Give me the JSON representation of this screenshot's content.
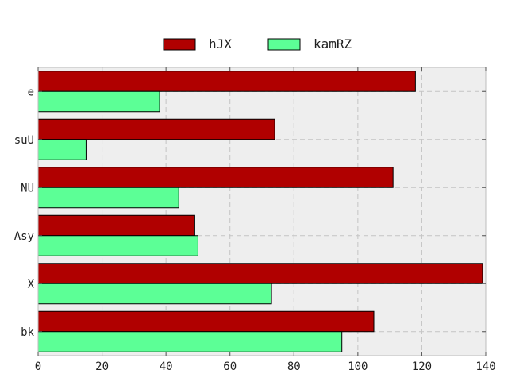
{
  "chart_data": {
    "type": "bar",
    "orientation": "horizontal",
    "categories": [
      "bk",
      "X",
      "Asy",
      "NU",
      "suU",
      "e"
    ],
    "series": [
      {
        "name": "hJX",
        "color": "#b00000",
        "values": [
          105,
          139,
          49,
          111,
          74,
          118
        ]
      },
      {
        "name": "kamRZ",
        "color": "#5cff96",
        "values": [
          95,
          73,
          50,
          44,
          15,
          38
        ]
      }
    ],
    "xlim": [
      0,
      140
    ],
    "xticks": [
      0,
      20,
      40,
      60,
      80,
      100,
      120,
      140
    ],
    "grid": true,
    "legend_position": "top-center"
  }
}
